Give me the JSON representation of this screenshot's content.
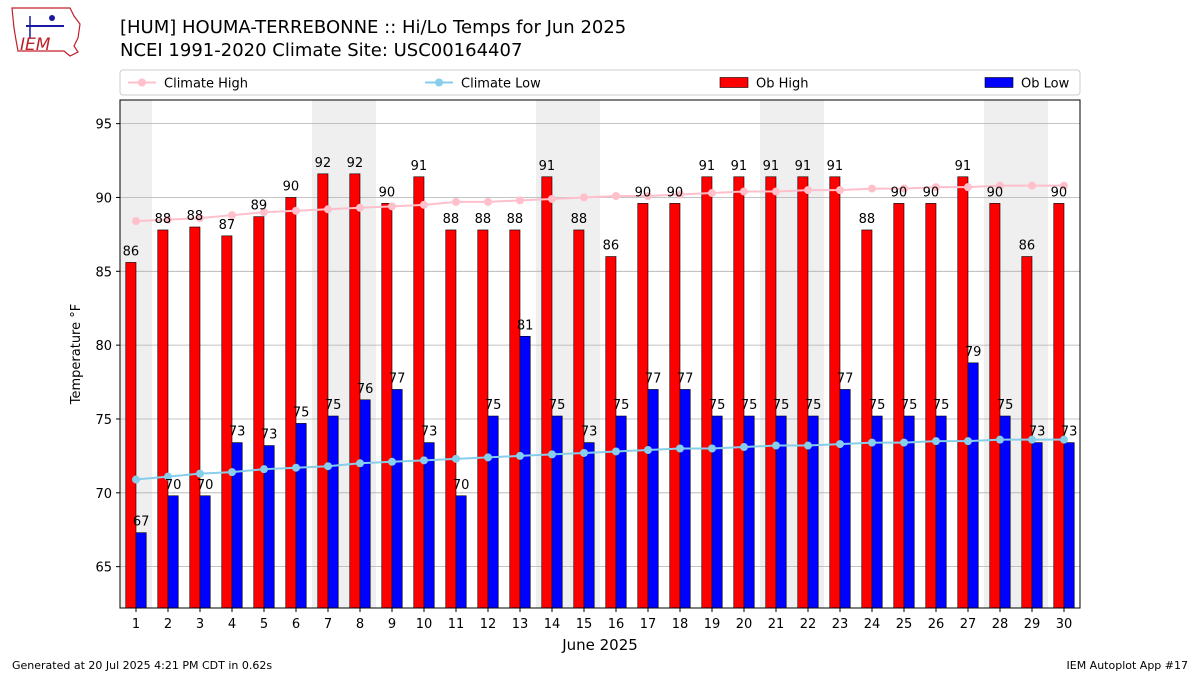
{
  "header": {
    "logo_text": "IEM",
    "title_line1": "[HUM] HOUMA-TERREBONNE :: Hi/Lo Temps for Jun 2025",
    "title_line2": "NCEI 1991-2020 Climate Site: USC00164407"
  },
  "footer": {
    "left": "Generated at 20 Jul 2025 4:21 PM CDT in 0.62s",
    "right": "IEM Autoplot App #17"
  },
  "chart_data": {
    "type": "bar",
    "xlabel": "June 2025",
    "ylabel": "Temperature °F",
    "ylim": [
      62.2,
      96.6
    ],
    "yticks": [
      65,
      70,
      75,
      80,
      85,
      90,
      95
    ],
    "grid": "horizontal",
    "legend_position": "top",
    "shaded_weekend_days": [
      1,
      7,
      8,
      14,
      15,
      21,
      22,
      28,
      29
    ],
    "categories": [
      1,
      2,
      3,
      4,
      5,
      6,
      7,
      8,
      9,
      10,
      11,
      12,
      13,
      14,
      15,
      16,
      17,
      18,
      19,
      20,
      21,
      22,
      23,
      24,
      25,
      26,
      27,
      28,
      29,
      30
    ],
    "series": [
      {
        "name": "Climate High",
        "kind": "line",
        "color": "#ffc0cb",
        "values": [
          88.4,
          88.5,
          88.6,
          88.8,
          89.0,
          89.1,
          89.2,
          89.3,
          89.4,
          89.5,
          89.7,
          89.7,
          89.8,
          89.9,
          90.0,
          90.1,
          90.1,
          90.2,
          90.3,
          90.4,
          90.4,
          90.5,
          90.5,
          90.6,
          90.6,
          90.7,
          90.7,
          90.8,
          90.8,
          90.8
        ]
      },
      {
        "name": "Climate Low",
        "kind": "line",
        "color": "#87ceeb",
        "values": [
          70.9,
          71.1,
          71.3,
          71.4,
          71.6,
          71.7,
          71.8,
          72.0,
          72.1,
          72.2,
          72.3,
          72.4,
          72.5,
          72.6,
          72.7,
          72.8,
          72.9,
          73.0,
          73.0,
          73.1,
          73.2,
          73.2,
          73.3,
          73.4,
          73.4,
          73.5,
          73.5,
          73.6,
          73.6,
          73.6
        ]
      },
      {
        "name": "Ob High",
        "kind": "bar",
        "color": "#ff0000",
        "values": [
          86,
          88,
          88,
          87,
          89,
          90,
          92,
          92,
          90,
          91,
          88,
          88,
          88,
          91,
          88,
          86,
          90,
          90,
          91,
          91,
          91,
          91,
          91,
          88,
          90,
          90,
          91,
          90,
          86,
          90
        ],
        "bar_values": [
          85.6,
          87.8,
          88.0,
          87.4,
          88.7,
          90.0,
          91.6,
          91.6,
          89.6,
          91.4,
          87.8,
          87.8,
          87.8,
          91.4,
          87.8,
          86.0,
          89.6,
          89.6,
          91.4,
          91.4,
          91.4,
          91.4,
          91.4,
          87.8,
          89.6,
          89.6,
          91.4,
          89.6,
          86.0,
          89.6
        ]
      },
      {
        "name": "Ob Low",
        "kind": "bar",
        "color": "#0000ff",
        "values": [
          67,
          70,
          70,
          73,
          73,
          75,
          75,
          76,
          77,
          73,
          70,
          75,
          81,
          75,
          73,
          75,
          77,
          77,
          75,
          75,
          75,
          75,
          77,
          75,
          75,
          75,
          79,
          75,
          73,
          73
        ],
        "bar_values": [
          67.3,
          69.8,
          69.8,
          73.4,
          73.2,
          74.7,
          75.2,
          76.3,
          77.0,
          73.4,
          69.8,
          75.2,
          80.6,
          75.2,
          73.4,
          75.2,
          77.0,
          77.0,
          75.2,
          75.2,
          75.2,
          75.2,
          77.0,
          75.2,
          75.2,
          75.2,
          78.8,
          75.2,
          73.4,
          73.4
        ]
      }
    ]
  }
}
